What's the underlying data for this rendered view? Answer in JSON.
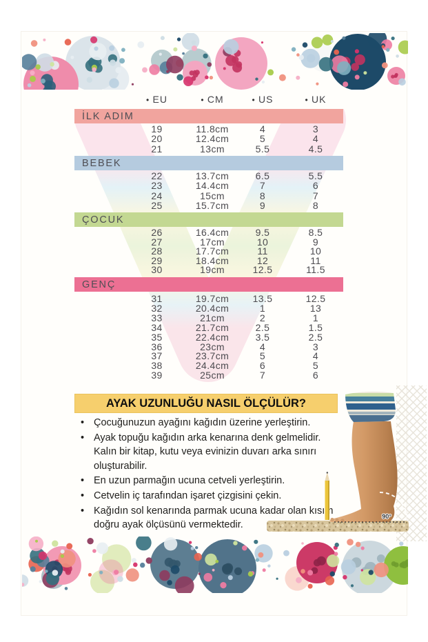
{
  "table": {
    "columns": [
      "EU",
      "CM",
      "US",
      "UK"
    ],
    "sections": [
      {
        "label": "İLK ADIM",
        "color": "#f1a49e",
        "rows": [
          [
            "19",
            "11.8cm",
            "4",
            "3"
          ],
          [
            "20",
            "12.4cm",
            "5",
            "4"
          ],
          [
            "21",
            "13cm",
            "5.5",
            "4.5"
          ]
        ]
      },
      {
        "label": "BEBEK",
        "color": "#b5cbdf",
        "rows": [
          [
            "22",
            "13.7cm",
            "6.5",
            "5.5"
          ],
          [
            "23",
            "14.4cm",
            "7",
            "6"
          ],
          [
            "24",
            "15cm",
            "8",
            "7"
          ],
          [
            "25",
            "15.7cm",
            "9",
            "8"
          ]
        ]
      },
      {
        "label": "ÇOCUK",
        "color": "#c3d892",
        "rows": [
          [
            "26",
            "16.4cm",
            "9.5",
            "8.5"
          ],
          [
            "27",
            "17cm",
            "10",
            "9"
          ],
          [
            "28",
            "17.7cm",
            "11",
            "10"
          ],
          [
            "29",
            "18.4cm",
            "12",
            "11"
          ],
          [
            "30",
            "19cm",
            "12.5",
            "11.5"
          ]
        ]
      },
      {
        "label": "GENÇ",
        "color": "#ec7093",
        "rows": [
          [
            "31",
            "19.7cm",
            "13.5",
            "12.5"
          ],
          [
            "32",
            "20.4cm",
            "1",
            "13"
          ],
          [
            "33",
            "21cm",
            "2",
            "1"
          ],
          [
            "34",
            "21.7cm",
            "2.5",
            "1.5"
          ],
          [
            "35",
            "22.4cm",
            "3.5",
            "2.5"
          ],
          [
            "36",
            "23cm",
            "4",
            "3"
          ],
          [
            "37",
            "23.7cm",
            "5",
            "4"
          ],
          [
            "38",
            "24.4cm",
            "6",
            "5"
          ],
          [
            "39",
            "25cm",
            "7",
            "6"
          ]
        ]
      }
    ]
  },
  "measure": {
    "title": "AYAK UZUNLUĞU NASIL ÖLÇÜLÜR?",
    "title_bg": "#f6cf6d",
    "bullets": [
      "Çocuğunuzun ayağını kağıdın üzerine yerleştirin.",
      "Ayak topuğu kağıdın arka kenarına denk gelmelidir. Kalın bir kitap, kutu veya evinizin duvarı arka sınırı oluşturabilir.",
      "En uzun parmağın ucuna cetveli yerleştirin.",
      "Cetvelin iç tarafından işaret çizgisini çekin.",
      "Kağıdın sol kenarında parmak ucuna kadar olan kısım doğru ayak ölçüsünü vermektedir."
    ],
    "angle_label": "90°"
  },
  "decor": {
    "palette": [
      "#ee7ca2",
      "#f6afc6",
      "#d6336c",
      "#1d4a68",
      "#56809a",
      "#7fb0c0",
      "#cfdde5",
      "#a8cb4a",
      "#cfe49e",
      "#e86450",
      "#f0917e",
      "#35707e",
      "#e8eef2",
      "#b9cfe0",
      "#8e3b5e"
    ]
  }
}
